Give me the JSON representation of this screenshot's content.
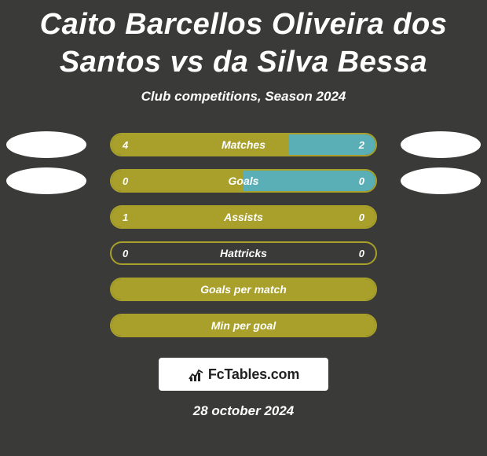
{
  "title": "Caito Barcellos Oliveira dos Santos vs da Silva Bessa",
  "subtitle": "Club competitions, Season 2024",
  "date": "28 october 2024",
  "brand": "FcTables.com",
  "colors": {
    "primary": "#a8a02a",
    "secondary": "#5aafb6",
    "background": "#3a3a38",
    "text": "#ffffff",
    "avatar": "#ffffff"
  },
  "avatars": {
    "left_visible_rows": [
      0,
      1
    ],
    "right_visible_rows": [
      0,
      1
    ]
  },
  "stats": [
    {
      "label": "Matches",
      "left_value": "4",
      "right_value": "2",
      "left_fill_pct": 67,
      "right_fill_pct": 33,
      "left_color": "#a8a02a",
      "right_color": "#5aafb6",
      "border_color": "#a8a02a"
    },
    {
      "label": "Goals",
      "left_value": "0",
      "right_value": "0",
      "left_fill_pct": 50,
      "right_fill_pct": 50,
      "left_color": "#a8a02a",
      "right_color": "#5aafb6",
      "border_color": "#a8a02a"
    },
    {
      "label": "Assists",
      "left_value": "1",
      "right_value": "0",
      "left_fill_pct": 100,
      "right_fill_pct": 0,
      "left_color": "#a8a02a",
      "right_color": "#5aafb6",
      "border_color": "#a8a02a"
    },
    {
      "label": "Hattricks",
      "left_value": "0",
      "right_value": "0",
      "left_fill_pct": 0,
      "right_fill_pct": 0,
      "left_color": "#a8a02a",
      "right_color": "#5aafb6",
      "border_color": "#a8a02a"
    },
    {
      "label": "Goals per match",
      "left_value": "",
      "right_value": "",
      "left_fill_pct": 100,
      "right_fill_pct": 0,
      "left_color": "#a8a02a",
      "right_color": "#5aafb6",
      "border_color": "#a8a02a"
    },
    {
      "label": "Min per goal",
      "left_value": "",
      "right_value": "",
      "left_fill_pct": 100,
      "right_fill_pct": 0,
      "left_color": "#a8a02a",
      "right_color": "#5aafb6",
      "border_color": "#a8a02a"
    }
  ]
}
